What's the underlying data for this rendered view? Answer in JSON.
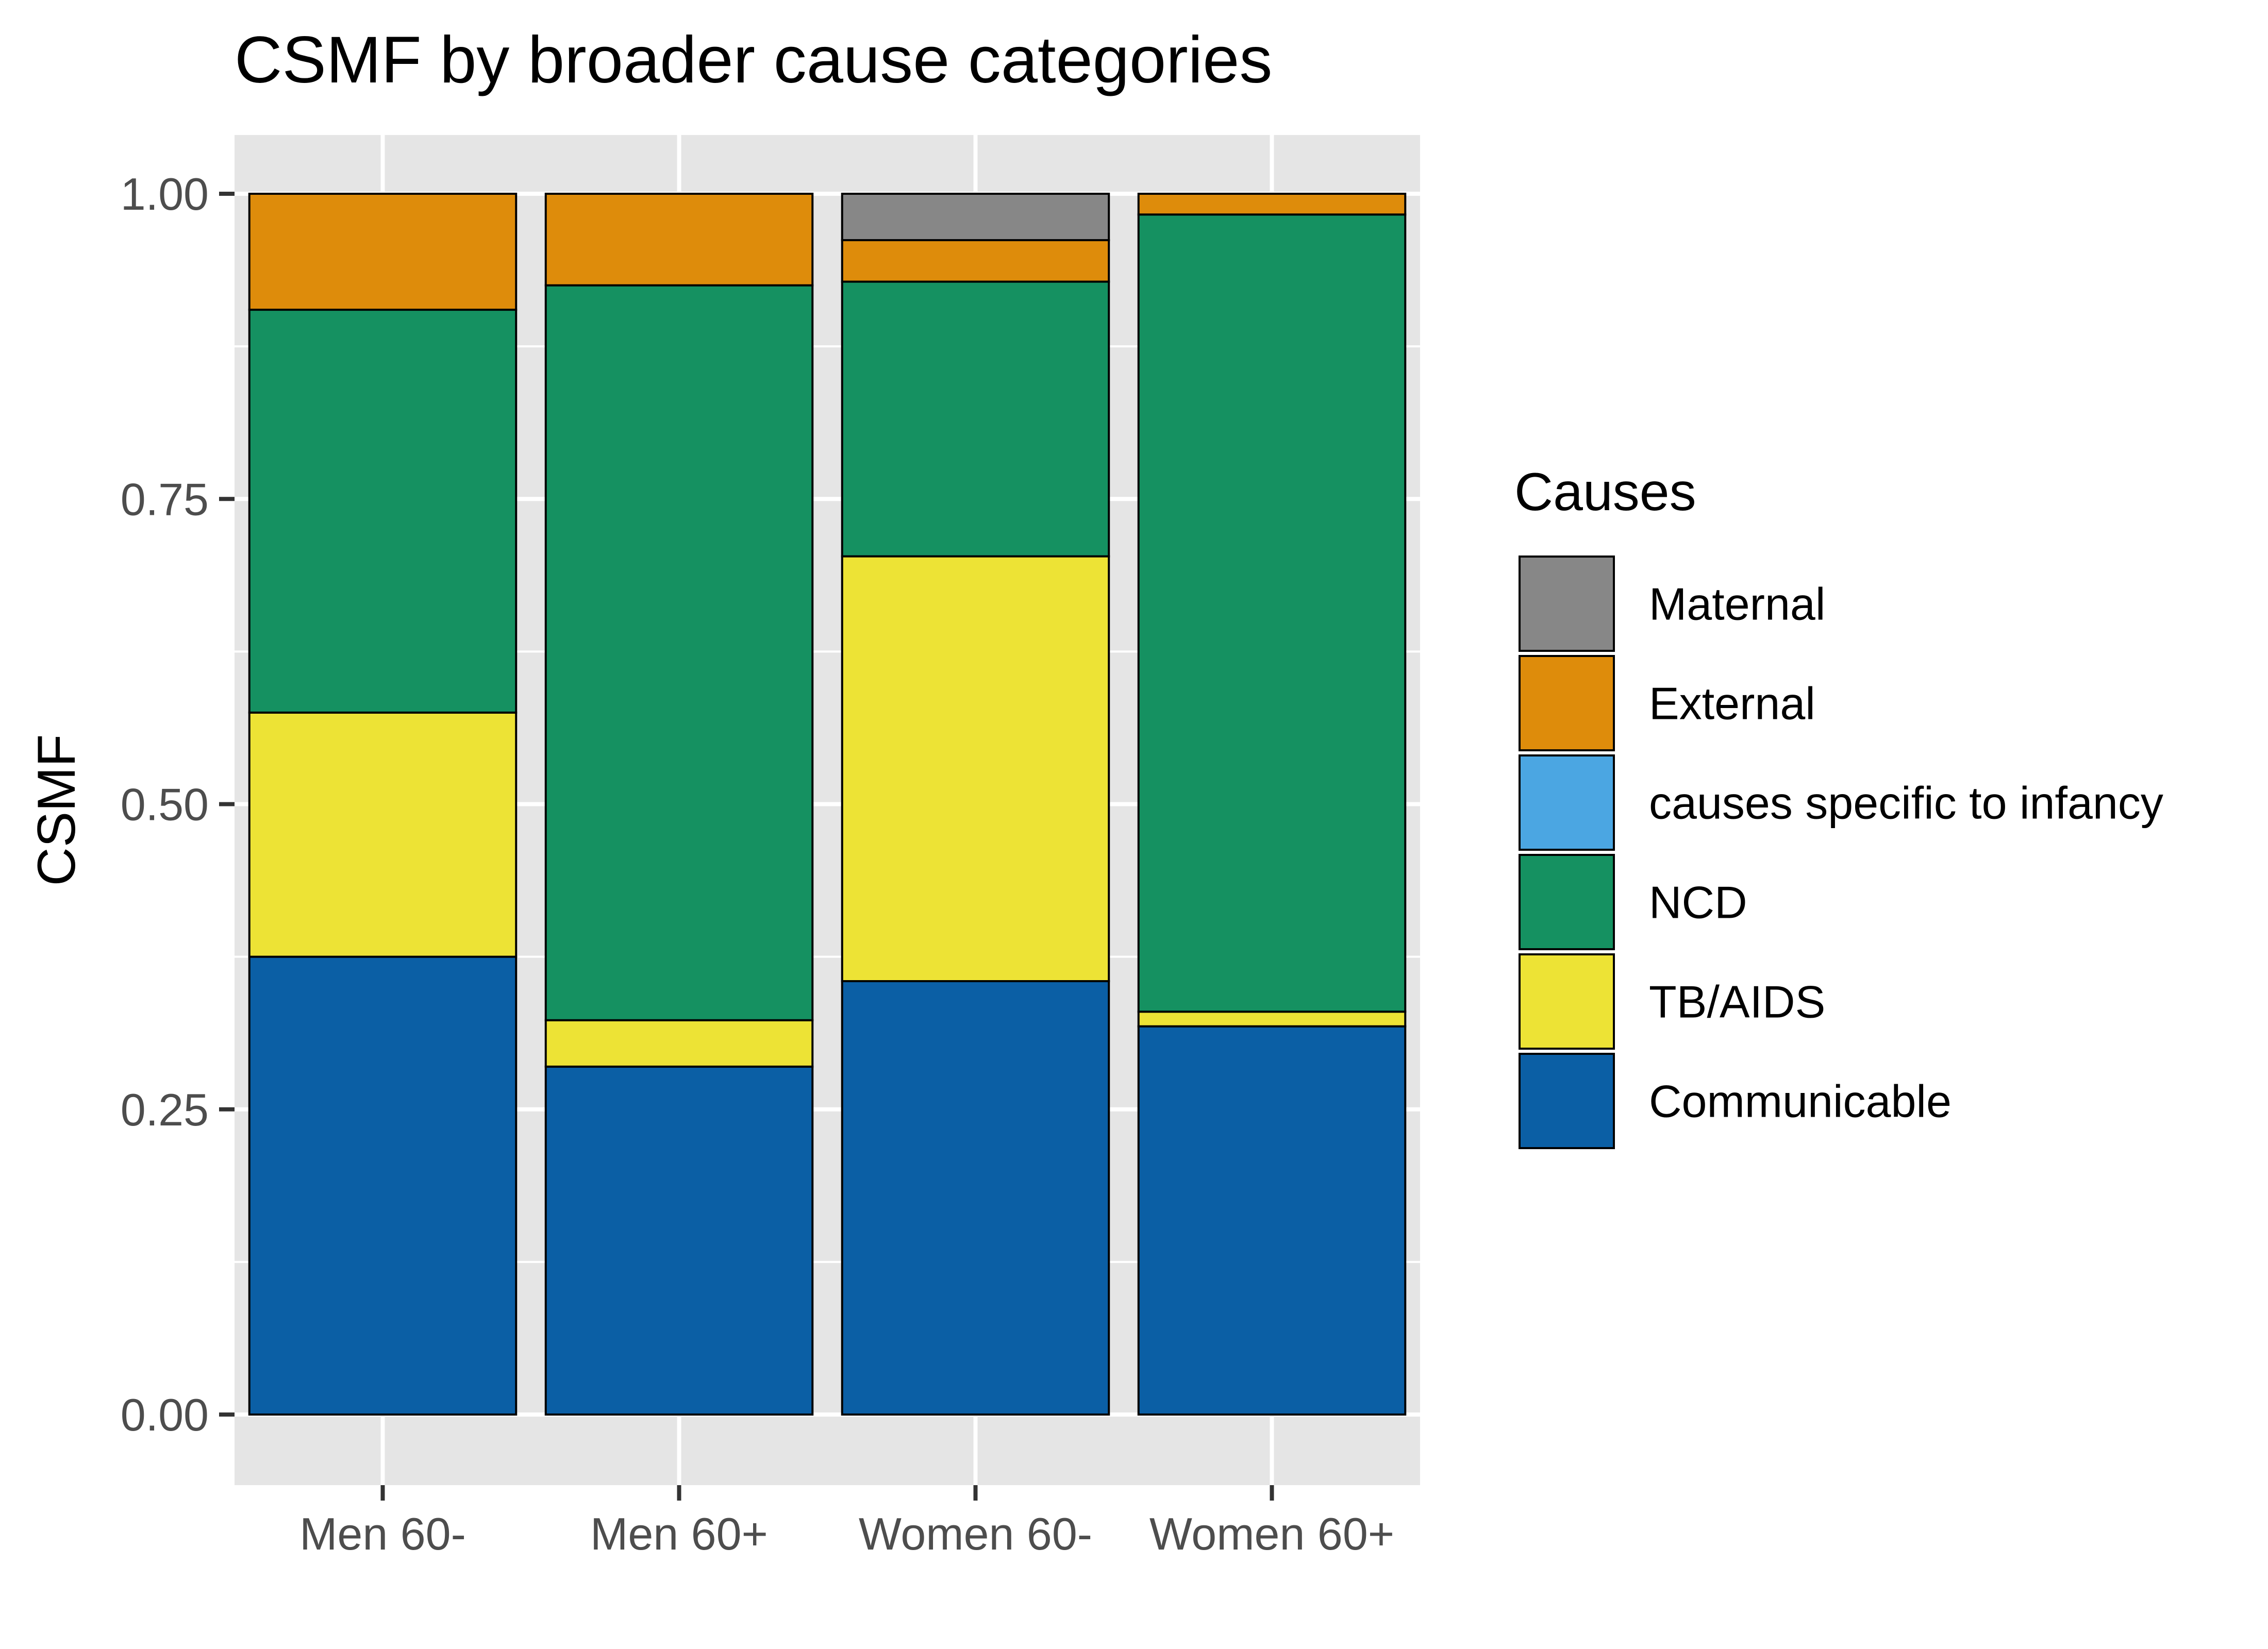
{
  "chart_data": {
    "type": "bar",
    "stacked": true,
    "title": "CSMF by broader cause categories",
    "ylabel": "CSMF",
    "xlabel": "",
    "ylim": [
      0,
      1
    ],
    "yticks": [
      0,
      0.25,
      0.5,
      0.75,
      1
    ],
    "ytick_labels": [
      "0.00",
      "0.25",
      "0.50",
      "0.75",
      "1.00"
    ],
    "grid": true,
    "legend_title": "Causes",
    "legend_position": "right",
    "categories": [
      "Men 60-",
      "Men 60+",
      "Women 60-",
      "Women 60+"
    ],
    "series": [
      {
        "name": "Communicable",
        "color": "#0b5fa5",
        "values": [
          0.375,
          0.285,
          0.355,
          0.318
        ]
      },
      {
        "name": "TB/AIDS",
        "color": "#ede335",
        "values": [
          0.2,
          0.038,
          0.348,
          0.012
        ]
      },
      {
        "name": "causes specific to infancy",
        "color": "#4ba6e2",
        "values": [
          0,
          0,
          0,
          0
        ]
      },
      {
        "name": "NCD",
        "color": "#159161",
        "values": [
          0.33,
          0.602,
          0.225,
          0.653
        ]
      },
      {
        "name": "External",
        "color": "#de8c0b",
        "values": [
          0.095,
          0.075,
          0.034,
          0.017
        ]
      },
      {
        "name": "Maternal",
        "color": "#878787",
        "values": [
          0,
          0,
          0.038,
          0
        ]
      }
    ],
    "legend_order": [
      "Maternal",
      "External",
      "causes specific to infancy",
      "NCD",
      "TB/AIDS",
      "Communicable"
    ]
  }
}
